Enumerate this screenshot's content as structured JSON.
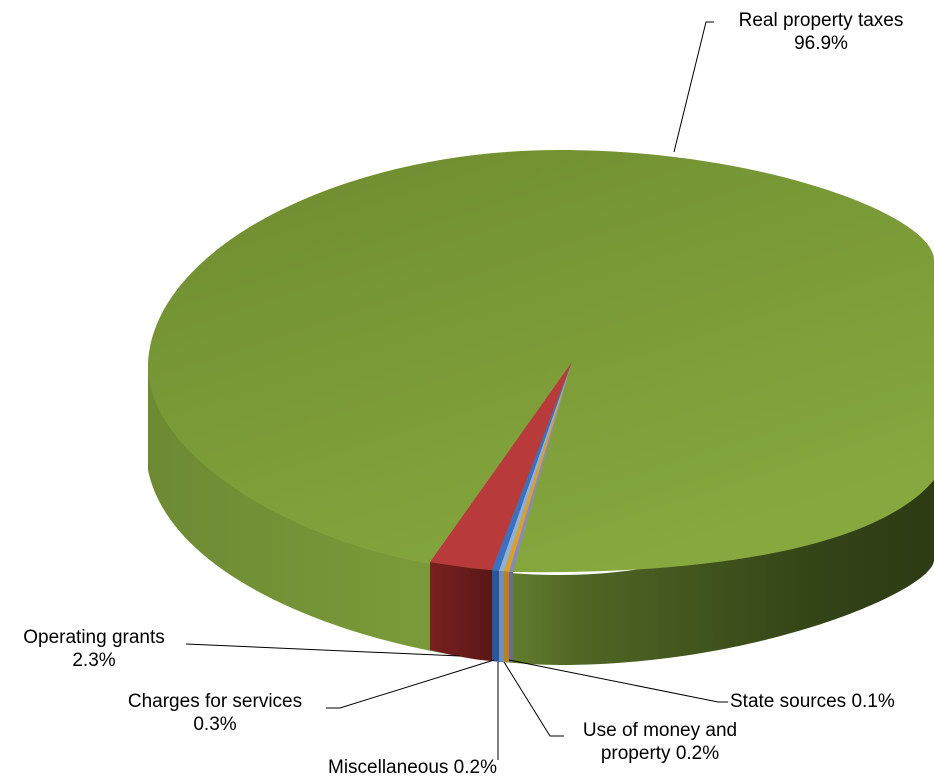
{
  "chart_data": {
    "type": "pie",
    "style": "3d-exploded-tilted",
    "title": "",
    "slices": [
      {
        "label": "Real property taxes",
        "value": 96.9,
        "value_label": "96.9%",
        "color": "#7a9a3a"
      },
      {
        "label": "Operating grants",
        "value": 2.3,
        "value_label": "2.3%",
        "color": "#a83232"
      },
      {
        "label": "Charges for services",
        "value": 0.3,
        "value_label": "0.3%",
        "color": "#3a6fc2"
      },
      {
        "label": "Miscellaneous",
        "value": 0.2,
        "value_label": "0.2%",
        "color": "#7aa0c8"
      },
      {
        "label": "Use of money and property",
        "value": 0.2,
        "value_label": "0.2%",
        "color": "#d9a030"
      },
      {
        "label": "State sources",
        "value": 0.1,
        "value_label": "0.1%",
        "color": "#7a7aaa"
      }
    ],
    "labels": {
      "real_property": {
        "name": "Real property taxes",
        "pct": "96.9%"
      },
      "operating_grants": {
        "name": "Operating grants",
        "pct": "2.3%"
      },
      "charges": {
        "name": "Charges for services",
        "pct": "0.3%"
      },
      "misc": {
        "text": "Miscellaneous 0.2%"
      },
      "use_money_1": {
        "text": "Use of money and"
      },
      "use_money_2": {
        "text": "property 0.2%"
      },
      "state": {
        "text": "State sources 0.1%"
      }
    }
  }
}
